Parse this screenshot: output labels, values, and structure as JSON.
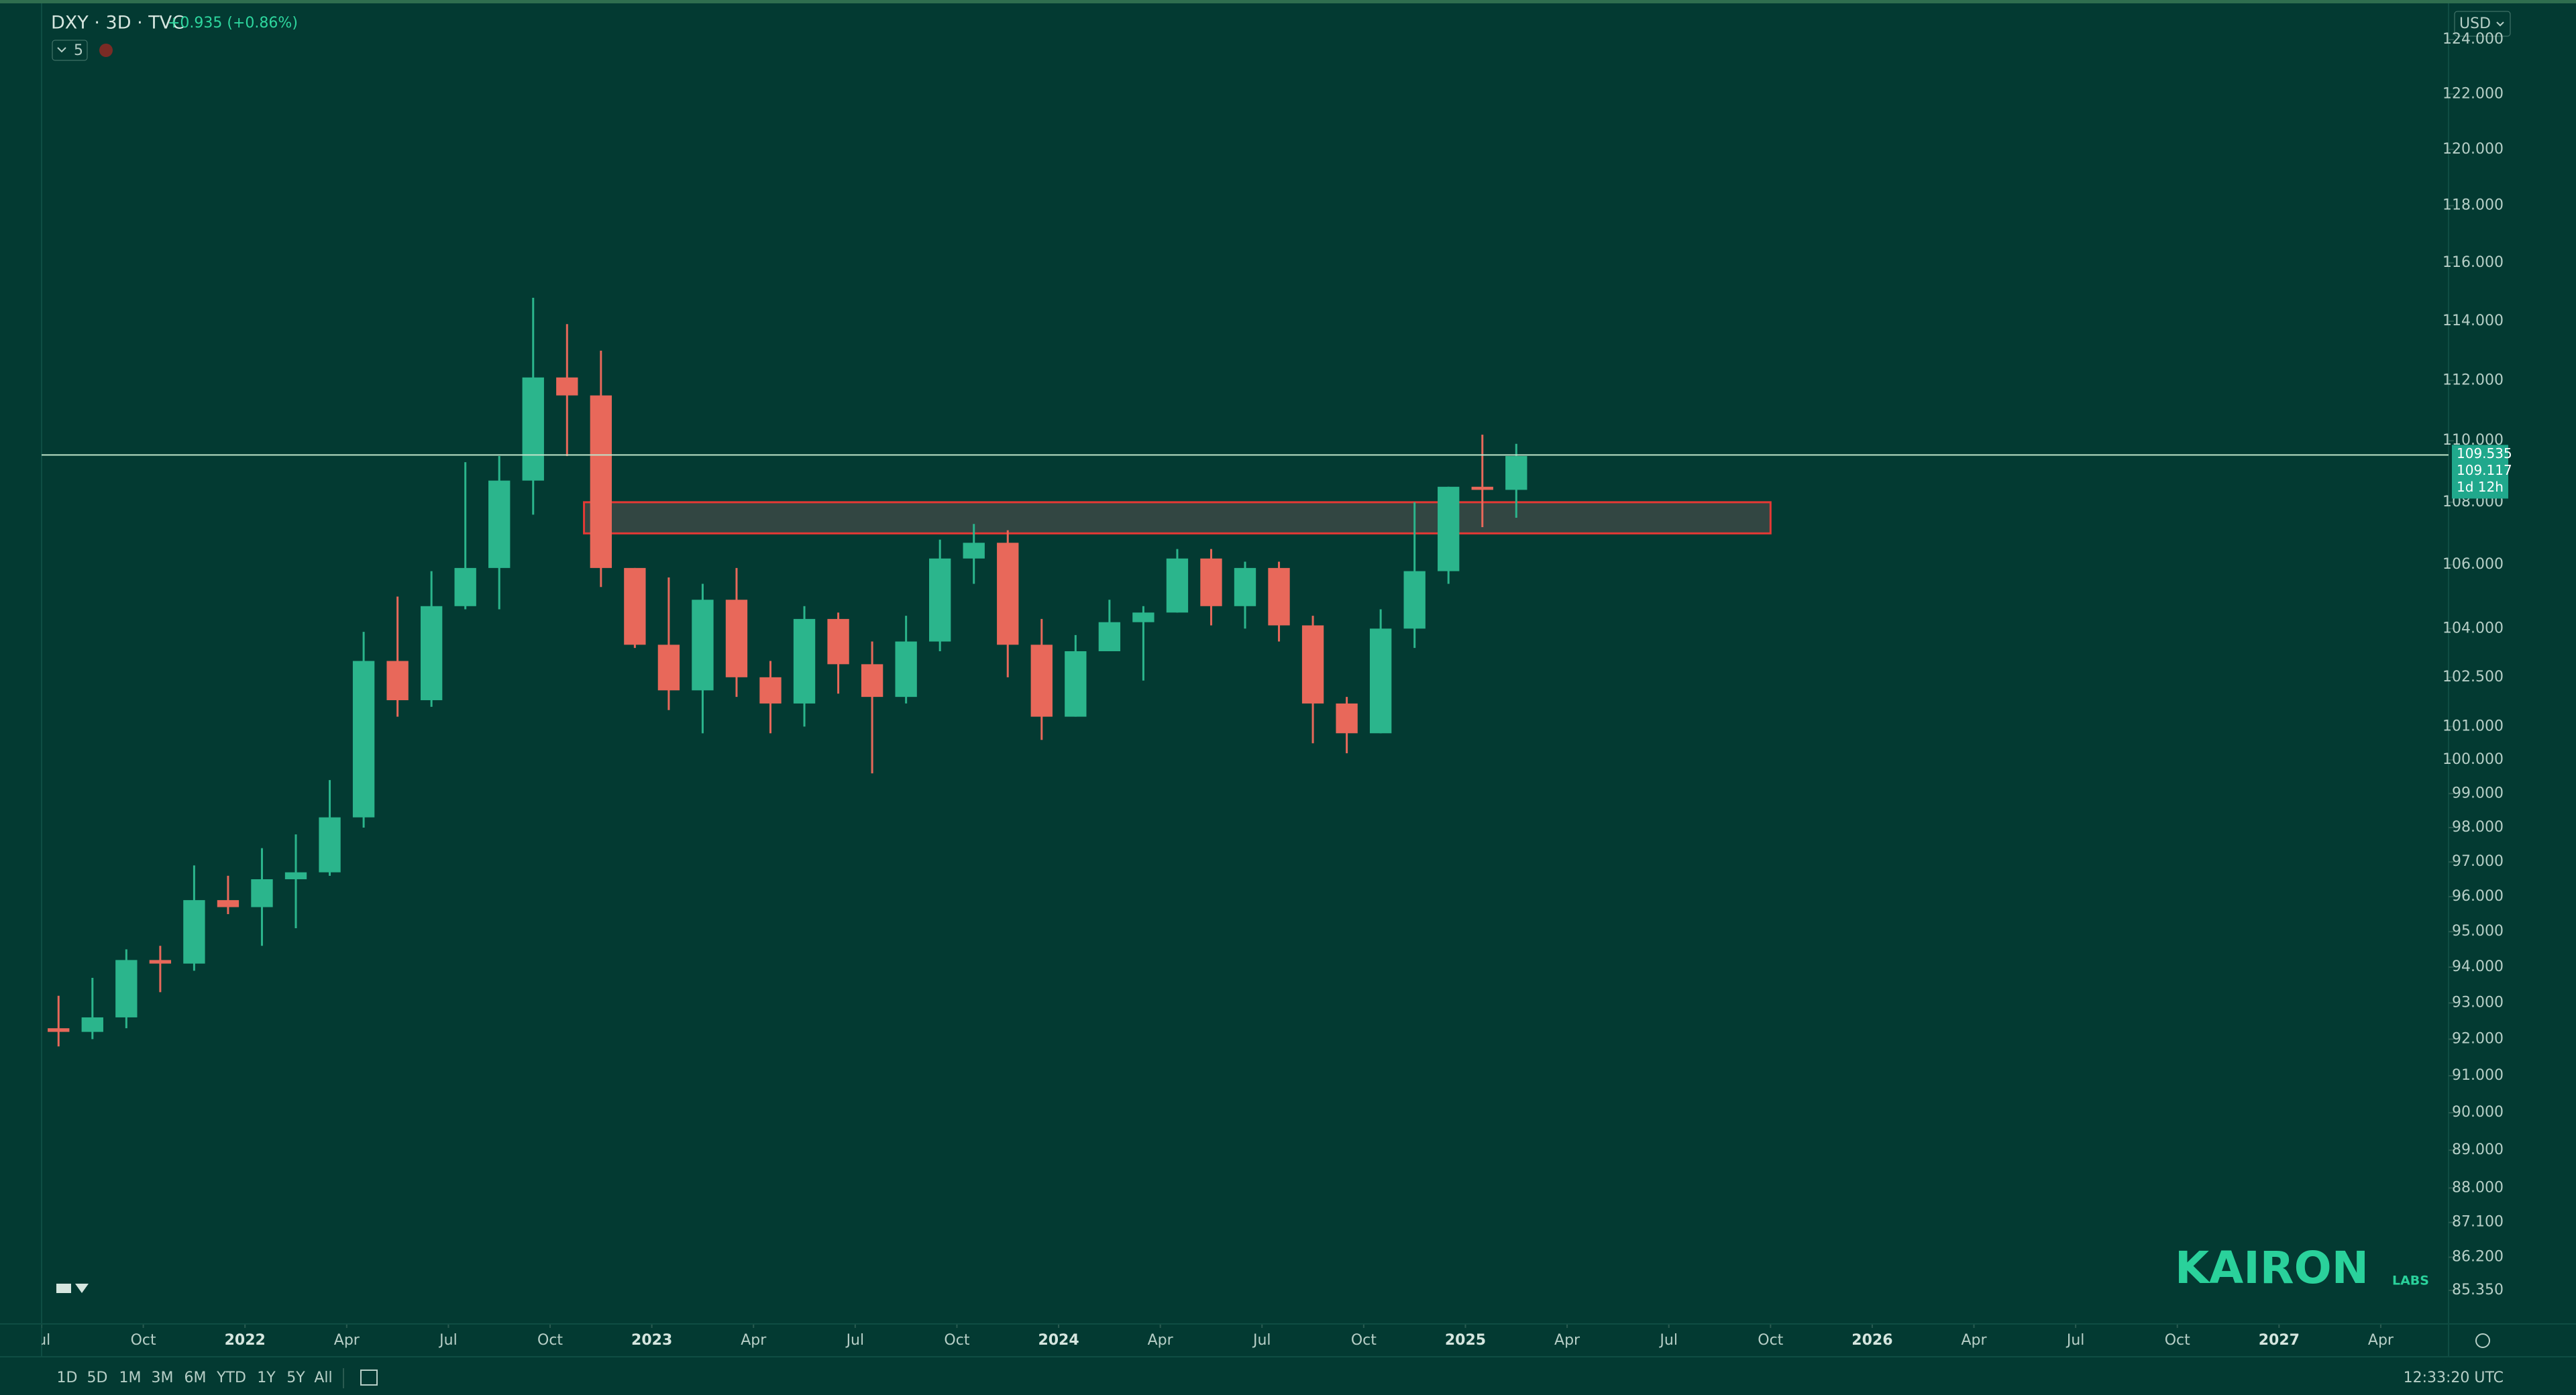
{
  "header": {
    "symbol": "DXY · 3D · TVC",
    "change": "+0.935 (+0.86%)",
    "indicators": "5",
    "currency": "USD"
  },
  "chart_data": {
    "type": "candlestick",
    "x": [
      "2021-07",
      "2021-08",
      "2021-09",
      "2021-10",
      "2021-11",
      "2021-12",
      "2022-01",
      "2022-02",
      "2022-03",
      "2022-04",
      "2022-05",
      "2022-06",
      "2022-07",
      "2022-08",
      "2022-09",
      "2022-10",
      "2022-11",
      "2022-12",
      "2023-01",
      "2023-02",
      "2023-03",
      "2023-04",
      "2023-05",
      "2023-06",
      "2023-07",
      "2023-08",
      "2023-09",
      "2023-10",
      "2023-11",
      "2023-12",
      "2024-01",
      "2024-02",
      "2024-03",
      "2024-04",
      "2024-05",
      "2024-06",
      "2024-07",
      "2024-08",
      "2024-09",
      "2024-10",
      "2024-11",
      "2024-12",
      "2025-01",
      "2025-02"
    ],
    "open": [
      92.3,
      92.2,
      92.6,
      94.2,
      94.1,
      95.9,
      95.7,
      96.5,
      96.7,
      98.3,
      103.0,
      101.8,
      104.7,
      105.9,
      108.7,
      112.1,
      111.5,
      105.9,
      103.5,
      102.1,
      104.9,
      102.5,
      101.7,
      104.3,
      102.9,
      101.9,
      103.6,
      106.2,
      106.7,
      103.5,
      101.3,
      103.3,
      104.2,
      104.5,
      106.2,
      104.7,
      105.9,
      104.1,
      101.7,
      100.8,
      104.0,
      105.8,
      108.5,
      108.4
    ],
    "high": [
      93.2,
      93.7,
      94.5,
      94.6,
      96.9,
      96.6,
      97.4,
      97.8,
      99.4,
      103.9,
      105.0,
      105.8,
      109.3,
      109.5,
      114.8,
      113.9,
      113.0,
      105.9,
      105.6,
      105.4,
      105.9,
      103.0,
      104.7,
      104.5,
      103.6,
      104.4,
      106.8,
      107.3,
      107.1,
      104.3,
      103.8,
      104.9,
      104.7,
      106.5,
      106.5,
      106.1,
      106.1,
      104.4,
      101.9,
      104.6,
      108.0,
      108.5,
      110.2,
      109.9
    ],
    "low": [
      91.8,
      92.0,
      92.3,
      93.3,
      93.9,
      95.5,
      94.6,
      95.1,
      96.6,
      98.0,
      101.3,
      101.6,
      104.6,
      104.6,
      107.6,
      109.5,
      105.3,
      103.4,
      101.5,
      100.8,
      101.9,
      100.8,
      101.0,
      102.0,
      99.6,
      101.7,
      103.3,
      105.4,
      102.5,
      100.6,
      101.3,
      103.3,
      102.4,
      104.5,
      104.1,
      104.0,
      103.6,
      100.5,
      100.2,
      100.8,
      103.4,
      105.4,
      107.2,
      107.5
    ],
    "close": [
      92.2,
      92.6,
      94.2,
      94.1,
      95.9,
      95.7,
      96.5,
      96.7,
      98.3,
      103.0,
      101.8,
      104.7,
      105.9,
      108.7,
      112.1,
      111.5,
      105.9,
      103.5,
      102.1,
      104.9,
      102.5,
      101.7,
      104.3,
      102.9,
      101.9,
      103.6,
      106.2,
      106.7,
      103.5,
      101.3,
      103.3,
      104.2,
      104.5,
      106.2,
      104.7,
      105.9,
      104.1,
      101.7,
      100.8,
      104.0,
      105.8,
      108.5,
      108.4,
      109.5
    ],
    "up_color": "#2bb58c",
    "down_color": "#e8685a",
    "xlim": [
      "2021-07",
      "2027-06"
    ],
    "xticks": [
      {
        "value": "2021-07",
        "label": "Jul"
      },
      {
        "value": "2021-10",
        "label": "Oct"
      },
      {
        "value": "2022-01",
        "label": "2022"
      },
      {
        "value": "2022-04",
        "label": "Apr"
      },
      {
        "value": "2022-07",
        "label": "Jul"
      },
      {
        "value": "2022-10",
        "label": "Oct"
      },
      {
        "value": "2023-01",
        "label": "2023"
      },
      {
        "value": "2023-04",
        "label": "Apr"
      },
      {
        "value": "2023-07",
        "label": "Jul"
      },
      {
        "value": "2023-10",
        "label": "Oct"
      },
      {
        "value": "2024-01",
        "label": "2024"
      },
      {
        "value": "2024-04",
        "label": "Apr"
      },
      {
        "value": "2024-07",
        "label": "Jul"
      },
      {
        "value": "2024-10",
        "label": "Oct"
      },
      {
        "value": "2025-01",
        "label": "2025"
      },
      {
        "value": "2025-04",
        "label": "Apr"
      },
      {
        "value": "2025-07",
        "label": "Jul"
      },
      {
        "value": "2025-10",
        "label": "Oct"
      },
      {
        "value": "2026-01",
        "label": "2026"
      },
      {
        "value": "2026-04",
        "label": "Apr"
      },
      {
        "value": "2026-07",
        "label": "Jul"
      },
      {
        "value": "2026-10",
        "label": "Oct"
      },
      {
        "value": "2027-01",
        "label": "2027"
      },
      {
        "value": "2027-04",
        "label": "Apr"
      }
    ],
    "ylim": [
      84.5,
      125.3
    ],
    "log_scale": true,
    "grid": false,
    "yticks": [
      {
        "value": 124,
        "label": "124.000"
      },
      {
        "value": 122,
        "label": "122.000"
      },
      {
        "value": 120,
        "label": "120.000"
      },
      {
        "value": 118,
        "label": "118.000"
      },
      {
        "value": 116,
        "label": "116.000"
      },
      {
        "value": 114,
        "label": "114.000"
      },
      {
        "value": 112,
        "label": "112.000"
      },
      {
        "value": 110,
        "label": "110.000"
      },
      {
        "value": 108,
        "label": "108.000"
      },
      {
        "value": 106,
        "label": "106.000"
      },
      {
        "value": 104,
        "label": "104.000"
      },
      {
        "value": 102.5,
        "label": "102.500"
      },
      {
        "value": 101,
        "label": "101.000"
      },
      {
        "value": 100,
        "label": "100.000"
      },
      {
        "value": 99,
        "label": "99.000"
      },
      {
        "value": 98,
        "label": "98.000"
      },
      {
        "value": 97,
        "label": "97.000"
      },
      {
        "value": 96,
        "label": "96.000"
      },
      {
        "value": 95,
        "label": "95.000"
      },
      {
        "value": 94,
        "label": "94.000"
      },
      {
        "value": 93,
        "label": "93.000"
      },
      {
        "value": 92,
        "label": "92.000"
      },
      {
        "value": 91,
        "label": "91.000"
      },
      {
        "value": 90,
        "label": "90.000"
      },
      {
        "value": 89,
        "label": "89.000"
      },
      {
        "value": 88,
        "label": "88.000"
      },
      {
        "value": 87.1,
        "label": "87.100"
      },
      {
        "value": 86.2,
        "label": "86.200"
      },
      {
        "value": 85.35,
        "label": "85.350"
      }
    ],
    "last_price": {
      "value": 109.535,
      "label": "109.535"
    },
    "price_labels": [
      "109.117",
      "1d 12h"
    ],
    "zone": {
      "from": "2022-11",
      "to": "2025-10",
      "top": 108.0,
      "bottom": 107.0,
      "color": "#e53935"
    }
  },
  "watermark": {
    "name": "KAIRON",
    "sub": "LABS"
  },
  "toolbar": {
    "ranges": [
      "1D",
      "5D",
      "1M",
      "3M",
      "6M",
      "YTD",
      "1Y",
      "5Y",
      "All"
    ],
    "time": "12:33:20 UTC"
  }
}
